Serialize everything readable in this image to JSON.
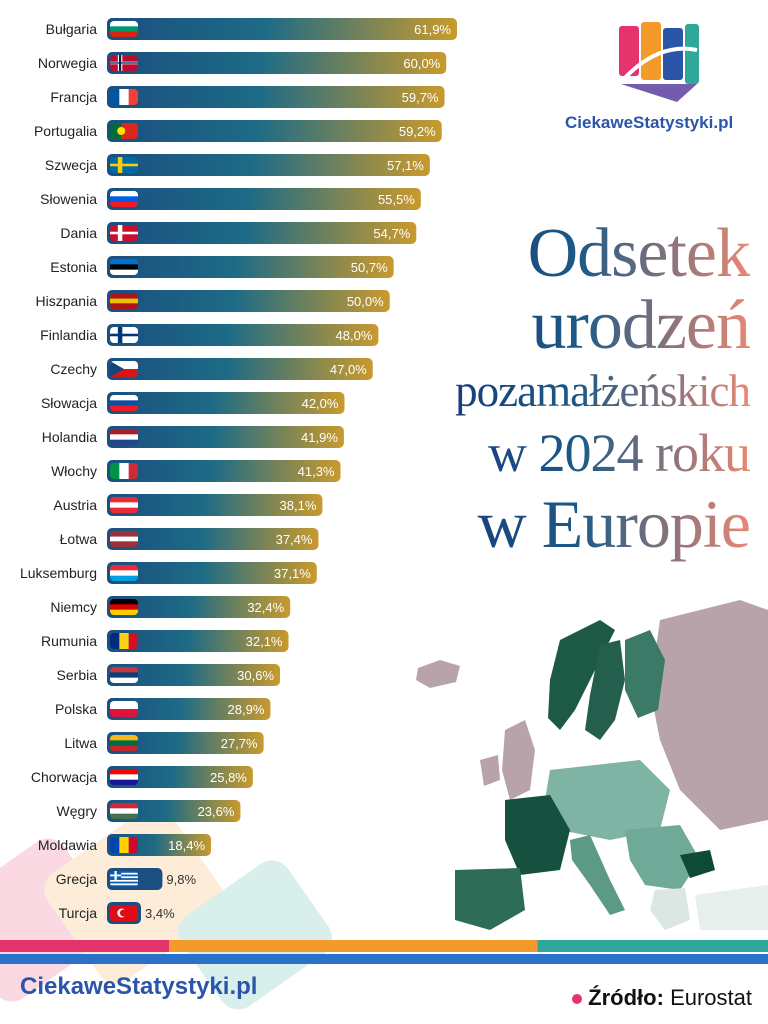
{
  "brand": {
    "top": "CiekaweStatystyki.pl",
    "bottom": "CiekaweStatystyki.pl"
  },
  "title": {
    "line1": "Odsetek",
    "line2": "urodzeń",
    "line3": "pozamałżeńskich",
    "line4": "w 2024 roku",
    "line5": "w Europie"
  },
  "source": {
    "label": "Źródło:",
    "value": "Eurostat"
  },
  "colors": {
    "bar_start": "#1b4f80",
    "bar_mid": "#1d6b86",
    "bar_end": "#c99a2e",
    "title": "#173a7a",
    "title_accent": "#e98873",
    "brand": "#2a55a8",
    "source_dot": "#e5336b"
  },
  "chart_data": {
    "type": "bar",
    "orientation": "horizontal",
    "title": "Odsetek urodzeń pozamałżeńskich w 2024 roku w Europie",
    "unit": "%",
    "categories": [
      "Bułgaria",
      "Norwegia",
      "Francja",
      "Portugalia",
      "Szwecja",
      "Słowenia",
      "Dania",
      "Estonia",
      "Hiszpania",
      "Finlandia",
      "Czechy",
      "Słowacja",
      "Holandia",
      "Włochy",
      "Austria",
      "Łotwa",
      "Luksemburg",
      "Niemcy",
      "Rumunia",
      "Serbia",
      "Polska",
      "Litwa",
      "Chorwacja",
      "Węgry",
      "Moldawia",
      "Grecja",
      "Turcja"
    ],
    "values": [
      61.9,
      60.0,
      59.7,
      59.2,
      57.1,
      55.5,
      54.7,
      50.7,
      50.0,
      48.0,
      47.0,
      42.0,
      41.9,
      41.3,
      38.1,
      37.4,
      37.1,
      32.4,
      32.1,
      30.6,
      28.9,
      27.7,
      25.8,
      23.6,
      18.4,
      9.8,
      3.4
    ],
    "value_labels": [
      "61,9%",
      "60,0%",
      "59,7%",
      "59,2%",
      "57,1%",
      "55,5%",
      "54,7%",
      "50,7%",
      "50,0%",
      "48,0%",
      "47,0%",
      "42,0%",
      "41,9%",
      "41,3%",
      "38,1%",
      "37,4%",
      "37,1%",
      "32,4%",
      "32,1%",
      "30,6%",
      "28,9%",
      "27,7%",
      "25,8%",
      "23,6%",
      "18,4%",
      "9,8%",
      "3,4%"
    ],
    "xlim": [
      0,
      61.9
    ],
    "grid": false,
    "legend": "none"
  }
}
